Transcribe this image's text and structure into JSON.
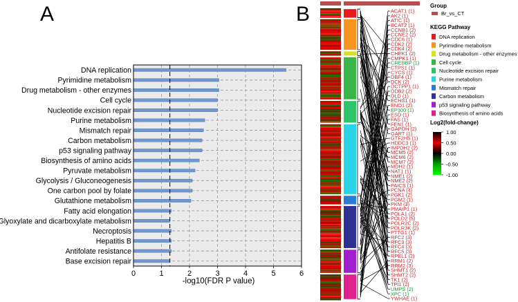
{
  "panel_a": {
    "label": "A",
    "chart_data": {
      "type": "bar",
      "orientation": "horizontal",
      "categories": [
        "DNA replication",
        "Pyrimidine metabolism",
        "Drug metabolism - other enzymes",
        "Cell cycle",
        "Nucleotide excision repair",
        "Purine metabolism",
        "Mismatch repair",
        "Carbon metabolism",
        "p53 signaling pathway",
        "Biosynthesis of amino acids",
        "Pyruvate metabolism",
        "Glycolysis / Gluconeogenesis",
        "One carbon pool by folate",
        "Glutathione metabolism",
        "Fatty acid elongation",
        "Glyoxylate and dicarboxylate metabolism",
        "Necroptosis",
        "Hepatitis B",
        "Antifolate resistance",
        "Base excision repair"
      ],
      "values": [
        5.45,
        3.05,
        3.05,
        3.0,
        3.0,
        2.55,
        2.5,
        2.45,
        2.45,
        2.35,
        2.2,
        2.1,
        2.1,
        2.05,
        1.35,
        1.3,
        1.35,
        1.35,
        1.35,
        1.3
      ],
      "threshold": 1.3,
      "xlabel": "-log10(FDR P value)",
      "xlim": [
        0,
        6
      ],
      "xticks": [
        "0",
        "1",
        "2",
        "3",
        "4",
        "5",
        "6"
      ],
      "grid": true,
      "bar_color": "#7098cf"
    }
  },
  "panel_b": {
    "label": "B",
    "genes": [
      "ACAT1 (1)",
      "AK2 (1)",
      "ATIC (1)",
      "BCAT2 (1)",
      "CCNB1 (2)",
      "CCNE2 (2)",
      "CDC6 (1)",
      "CDK2 (2)",
      "CDK4 (2)",
      "CHEK1 (2)",
      "CMPK1 (1)",
      "CREBBP (1)",
      "CTPS1 (1)",
      "CYCS (1)",
      "DBF4 (1)",
      "DCK (2)",
      "DCTPP1 (1)",
      "DDB2 (2)",
      "DLD (1)",
      "ECHS1 (1)",
      "ENO1 (2)",
      "EP300 (1)",
      "ESD (1)",
      "FAS (1)",
      "FEN1 (1)",
      "GAPDH (2)",
      "GART (1)",
      "GTF2H5 (1)",
      "HDDC3 (1)",
      "IMPDH2 (2)",
      "MCM5 (2)",
      "MCM6 (2)",
      "MCM7 (2)",
      "MDH2 (1)",
      "NAT1 (1)",
      "NME1 (2)",
      "NME2 (2)",
      "PAICS (1)",
      "PCNA (4)",
      "PGK1 (2)",
      "PGM2 (1)",
      "PKM (3)",
      "PMAIP1 (1)",
      "POLA1 (2)",
      "POLD2 (5)",
      "POLR2C (2)",
      "POLR3K (2)",
      "PTTG1 (1)",
      "RFC2 (3)",
      "RFC3 (3)",
      "RFC4 (3)",
      "RFC5 (3)",
      "RPEL1 (2)",
      "RRM1 (2)",
      "RRM2 (3)",
      "SHMT1 (2)",
      "SHMT2 (2)",
      "TK1 (2)",
      "TPI1 (2)",
      "UMPS (2)",
      "XPC (1)",
      "YWHAE (1)"
    ],
    "gene_colors": [
      "#c8282e",
      "#c8282e",
      "#c8282e",
      "#c8282e",
      "#c8282e",
      "#c8282e",
      "#c8282e",
      "#c8282e",
      "#c8282e",
      "#c8282e",
      "#c8282e",
      "#1a9a3a",
      "#c8282e",
      "#c8282e",
      "#c8282e",
      "#c8282e",
      "#c8282e",
      "#c8282e",
      "#c8282e",
      "#c8282e",
      "#c8282e",
      "#1a9a3a",
      "#c8282e",
      "#c8282e",
      "#c8282e",
      "#c8282e",
      "#c8282e",
      "#c8282e",
      "#c8282e",
      "#c8282e",
      "#c8282e",
      "#c8282e",
      "#c8282e",
      "#c8282e",
      "#c8282e",
      "#c8282e",
      "#c8282e",
      "#c8282e",
      "#c8282e",
      "#c8282e",
      "#c8282e",
      "#c8282e",
      "#c8282e",
      "#c8282e",
      "#c8282e",
      "#c8282e",
      "#c8282e",
      "#c8282e",
      "#c8282e",
      "#c8282e",
      "#c8282e",
      "#c8282e",
      "#c8282e",
      "#c8282e",
      "#c8282e",
      "#c8282e",
      "#c8282e",
      "#c8282e",
      "#c8282e",
      "#1a9a3a",
      "#1a9a3a",
      "#c8282e"
    ],
    "pathway_segments": [
      {
        "name": "DNA replication",
        "color": "#e41a1c",
        "rows": [
          0,
          14
        ]
      },
      {
        "name": "Pyrimidine metabolism",
        "color": "#f7941d",
        "rows": [
          14,
          58
        ]
      },
      {
        "name": "Drug metabolism - other enzymes",
        "color": "#d9e021",
        "rows": [
          58,
          66
        ]
      },
      {
        "name": "Cell cycle",
        "color": "#39b54a",
        "rows": [
          66,
          126
        ]
      },
      {
        "name": "Nucleotide excision repair",
        "color": "#2ec469",
        "rows": [
          126,
          158
        ]
      },
      {
        "name": "Purine metabolism",
        "color": "#29d4e6",
        "rows": [
          158,
          256
        ]
      },
      {
        "name": "Mismatch repair",
        "color": "#2b7bd3",
        "rows": [
          256,
          270
        ]
      },
      {
        "name": "Carbon metabolism",
        "color": "#2e3192",
        "rows": [
          270,
          330
        ]
      },
      {
        "name": "p53 signaling pathway",
        "color": "#a020d0",
        "rows": [
          330,
          364
        ]
      },
      {
        "name": "Biosynthesis of amino acids",
        "color": "#e0208c",
        "rows": [
          364,
          400
        ]
      }
    ],
    "legend": {
      "group_title": "Group",
      "group_item": "Br_vs_CT",
      "group_color": "#b5504e",
      "kegg_title": "KEGG Pathway",
      "kegg_items": [
        {
          "label": "DNA replication",
          "color": "#e41a1c"
        },
        {
          "label": "Pyrimidine metabolism",
          "color": "#f7941d"
        },
        {
          "label": "Drug metabolism - other enzymes",
          "color": "#d9e021"
        },
        {
          "label": "Cell cycle",
          "color": "#39b54a"
        },
        {
          "label": "Nucleotide excision repair",
          "color": "#2ec469"
        },
        {
          "label": "Purine metabolism",
          "color": "#29d4e6"
        },
        {
          "label": "Mismatch repair",
          "color": "#2b7bd3"
        },
        {
          "label": "Carbon metabolism",
          "color": "#2e3192"
        },
        {
          "label": "p53 signaling pathway",
          "color": "#a020d0"
        },
        {
          "label": "Biosynthesis of amino acids",
          "color": "#e0208c"
        }
      ],
      "fc_title": "Log2(fold-change)",
      "fc_ticks": [
        "1.00",
        "0.50",
        "0.00",
        "-0.50",
        "-1.00"
      ],
      "fc_colors": [
        "#000000",
        "#e00000",
        "#000000",
        "#00e000"
      ]
    }
  }
}
